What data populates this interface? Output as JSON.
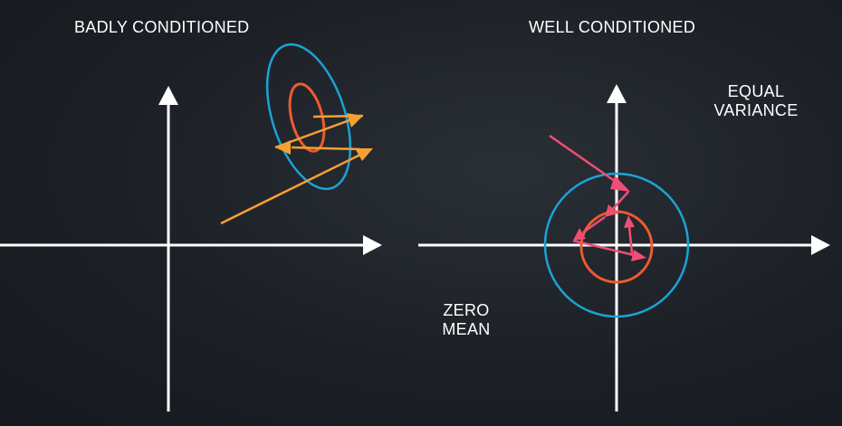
{
  "left_panel": {
    "title": "BADLY CONDITIONED"
  },
  "right_panel": {
    "title": "WELL CONDITIONED",
    "annotation_variance": "EQUAL\nVARIANCE",
    "annotation_mean": "ZERO\nMEAN"
  },
  "colors": {
    "background": "#1c2026",
    "axis": "#ffffff",
    "outer_contour": "#1ba3d6",
    "inner_contour": "#ee5a30",
    "steps_badly_conditioned": "#f5a033",
    "steps_well_conditioned": "#ef4f74"
  }
}
